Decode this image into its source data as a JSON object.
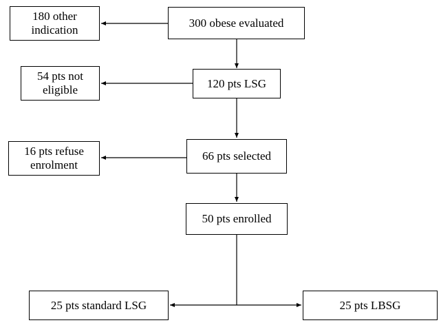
{
  "flowchart": {
    "boxes": {
      "evaluated": "300 obese evaluated",
      "other_indication": "180 other\nindication",
      "lsg": "120 pts LSG",
      "not_eligible": "54 pts not\neligible",
      "selected": "66 pts selected",
      "refuse": "16 pts refuse\nenrolment",
      "enrolled": "50 pts enrolled",
      "standard_lsg": "25 pts standard LSG",
      "lbsg": "25 pts LBSG"
    },
    "colors": {
      "line": "#000000",
      "box_border": "#000000",
      "background": "#ffffff"
    }
  }
}
